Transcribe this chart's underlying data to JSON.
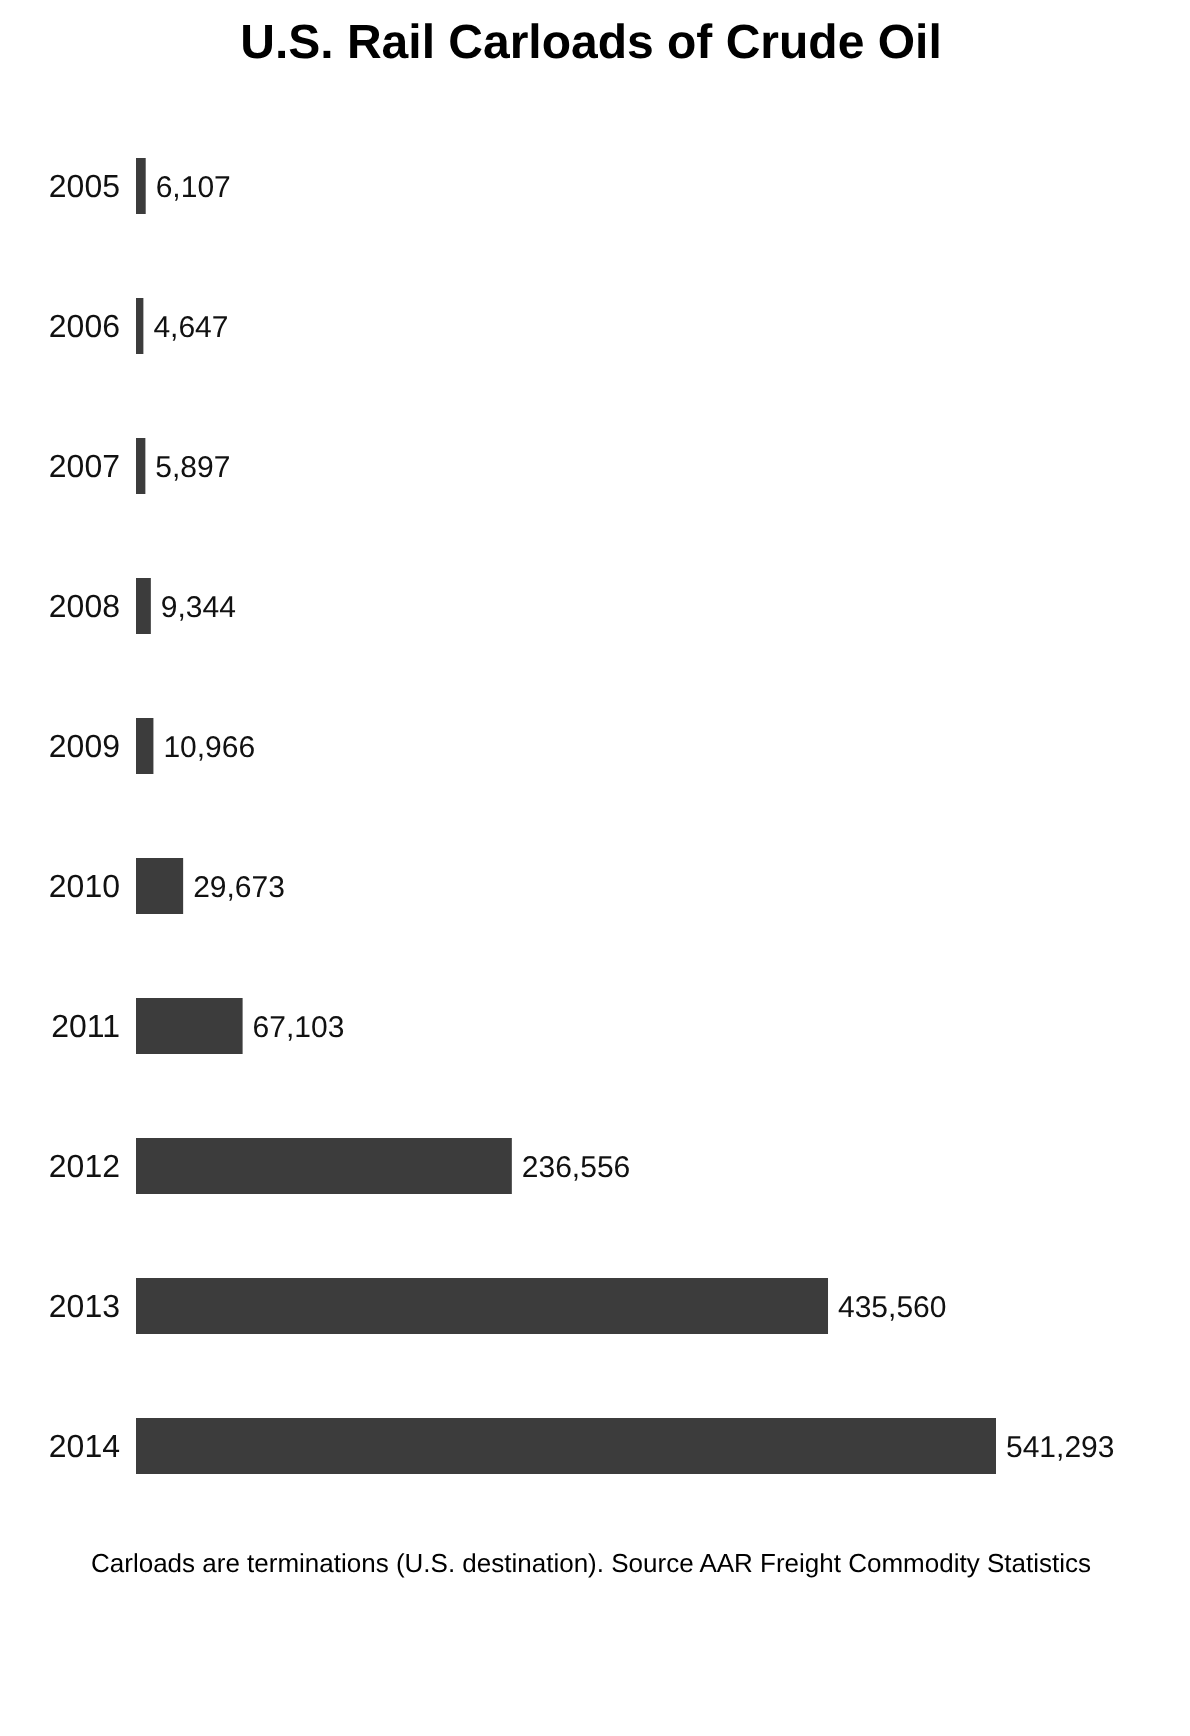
{
  "chart_data": {
    "type": "bar",
    "orientation": "horizontal",
    "title": "U.S. Rail Carloads of Crude Oil",
    "categories": [
      "2005",
      "2006",
      "2007",
      "2008",
      "2009",
      "2010",
      "2011",
      "2012",
      "2013",
      "2014"
    ],
    "values": [
      6107,
      4647,
      5897,
      9344,
      10966,
      29673,
      67103,
      236556,
      435560,
      541293
    ],
    "value_labels": [
      "6,107",
      "4,647",
      "5,897",
      "9,344",
      "10,966",
      "29,673",
      "67,103",
      "236,556",
      "435,560",
      "541,293"
    ],
    "color": "#3c3c3c",
    "annotations": [
      "Carloads are terminations (U.S. destination). Source AAR Freight Commodity Statistics"
    ]
  }
}
